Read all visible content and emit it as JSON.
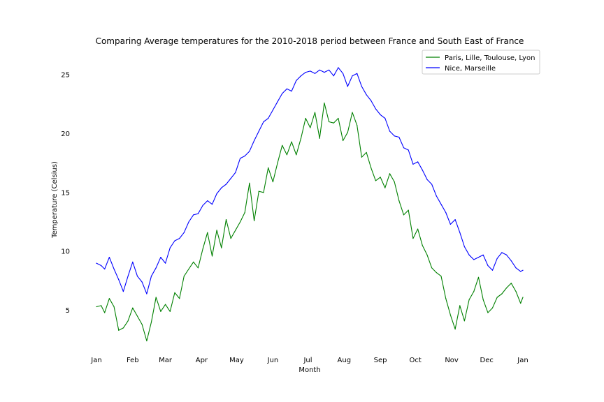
{
  "chart_data": {
    "type": "line",
    "title": "Comparing Average temperatures for the 2010-2018 period between France and South East of France",
    "xlabel": "Month",
    "ylabel": "Temperature (Celsius)",
    "x_ticks": [
      "Jan",
      "Feb",
      "Mar",
      "Apr",
      "May",
      "Jun",
      "Jul",
      "Aug",
      "Sep",
      "Oct",
      "Nov",
      "Dec",
      "Jan"
    ],
    "x_tick_days": [
      1,
      32,
      60,
      91,
      121,
      152,
      182,
      213,
      244,
      274,
      305,
      335,
      366
    ],
    "y_ticks": [
      5,
      10,
      15,
      20,
      25
    ],
    "xlim": [
      1,
      366
    ],
    "ylim": [
      1.6,
      26.6
    ],
    "grid": false,
    "legend_position": "top-right",
    "x_unit": "day of year",
    "series": [
      {
        "name": "Paris, Lille, Toulouse, Lyon",
        "color": "#008000",
        "x": [
          1,
          5,
          8,
          12,
          16,
          20,
          24,
          28,
          32,
          36,
          40,
          44,
          48,
          52,
          56,
          60,
          64,
          68,
          72,
          76,
          80,
          84,
          88,
          92,
          96,
          100,
          104,
          108,
          112,
          116,
          120,
          124,
          128,
          132,
          136,
          140,
          144,
          148,
          152,
          156,
          160,
          164,
          168,
          172,
          176,
          180,
          184,
          188,
          192,
          196,
          200,
          204,
          208,
          212,
          216,
          220,
          224,
          228,
          232,
          236,
          240,
          244,
          248,
          252,
          256,
          260,
          264,
          268,
          272,
          276,
          280,
          284,
          288,
          292,
          296,
          300,
          304,
          308,
          312,
          316,
          320,
          324,
          328,
          332,
          336,
          340,
          344,
          348,
          352,
          356,
          360,
          364,
          366
        ],
        "values": [
          5.3,
          5.4,
          4.8,
          6.0,
          5.3,
          3.3,
          3.5,
          4.1,
          5.2,
          4.5,
          3.8,
          2.4,
          4.0,
          6.1,
          4.9,
          5.5,
          4.9,
          6.5,
          6.0,
          7.9,
          8.5,
          9.1,
          8.6,
          10.2,
          11.6,
          9.6,
          11.8,
          10.3,
          12.7,
          11.1,
          11.8,
          12.5,
          13.3,
          15.8,
          12.6,
          15.1,
          15.0,
          17.1,
          15.9,
          17.5,
          19.0,
          18.2,
          19.3,
          18.2,
          19.6,
          21.3,
          20.5,
          21.8,
          19.6,
          22.6,
          21.0,
          20.9,
          21.3,
          19.4,
          20.1,
          21.8,
          20.7,
          18.0,
          18.4,
          17.1,
          16.0,
          16.3,
          15.4,
          16.6,
          15.9,
          14.3,
          13.1,
          13.5,
          11.1,
          11.9,
          10.5,
          9.7,
          8.6,
          8.2,
          7.9,
          6.0,
          4.6,
          3.4,
          5.4,
          4.1,
          5.9,
          6.6,
          7.8,
          5.9,
          4.8,
          5.2,
          6.1,
          6.4,
          6.9,
          7.3,
          6.6,
          5.6,
          6.1
        ]
      },
      {
        "name": "Nice, Marseille",
        "color": "#0000ff",
        "x": [
          1,
          5,
          8,
          12,
          16,
          20,
          24,
          28,
          32,
          36,
          40,
          44,
          48,
          52,
          56,
          60,
          64,
          68,
          72,
          76,
          80,
          84,
          88,
          92,
          96,
          100,
          104,
          108,
          112,
          116,
          120,
          124,
          128,
          132,
          136,
          140,
          144,
          148,
          152,
          156,
          160,
          164,
          168,
          172,
          176,
          180,
          184,
          188,
          192,
          196,
          200,
          204,
          208,
          212,
          216,
          220,
          224,
          228,
          232,
          236,
          240,
          244,
          248,
          252,
          256,
          260,
          264,
          268,
          272,
          276,
          280,
          284,
          288,
          292,
          296,
          300,
          304,
          308,
          312,
          316,
          320,
          324,
          328,
          332,
          336,
          340,
          344,
          348,
          352,
          356,
          360,
          364,
          366
        ],
        "values": [
          9.0,
          8.8,
          8.5,
          9.5,
          8.5,
          7.6,
          6.6,
          7.9,
          9.1,
          7.9,
          7.4,
          6.4,
          7.9,
          8.6,
          9.5,
          9.0,
          10.3,
          10.9,
          11.1,
          11.6,
          12.5,
          13.1,
          13.2,
          13.9,
          14.3,
          14.0,
          14.9,
          15.4,
          15.7,
          16.2,
          16.7,
          17.9,
          18.1,
          18.5,
          19.4,
          20.2,
          21.0,
          21.3,
          22.0,
          22.7,
          23.4,
          23.8,
          23.6,
          24.5,
          24.9,
          25.2,
          25.3,
          25.1,
          25.4,
          25.2,
          25.4,
          24.9,
          25.6,
          25.1,
          24.0,
          24.9,
          25.1,
          24.0,
          23.3,
          22.8,
          22.1,
          21.6,
          21.3,
          20.2,
          19.8,
          19.7,
          18.8,
          18.6,
          17.4,
          17.6,
          16.9,
          16.1,
          15.7,
          14.7,
          14.0,
          13.3,
          12.3,
          12.7,
          11.6,
          10.4,
          9.7,
          9.3,
          9.5,
          9.7,
          8.8,
          8.4,
          9.4,
          9.9,
          9.7,
          9.2,
          8.6,
          8.3,
          8.4
        ]
      }
    ]
  }
}
